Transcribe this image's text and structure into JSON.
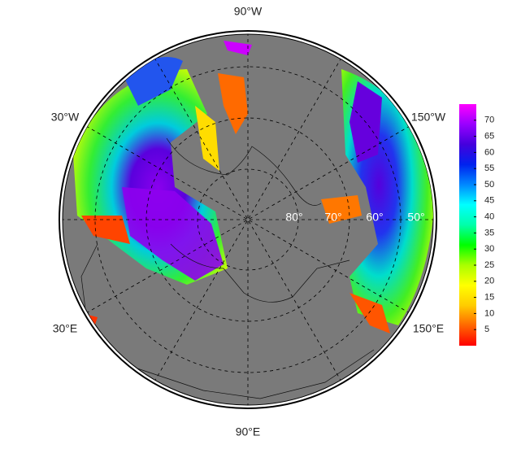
{
  "map": {
    "longitude_labels": [
      "90°W",
      "30°W",
      "150°W",
      "30°E",
      "150°E",
      "90°E"
    ],
    "latitude_labels": [
      "80°",
      "70°",
      "60°",
      "50°"
    ]
  },
  "colorbar": {
    "lim": [
      0,
      75
    ],
    "ticks": [
      5,
      10,
      15,
      20,
      25,
      30,
      35,
      40,
      45,
      50,
      55,
      60,
      65,
      70
    ],
    "colors": [
      "#ff0000",
      "#ff6600",
      "#ffcc00",
      "#ffff00",
      "#aaff00",
      "#00ff00",
      "#00ffaa",
      "#00ffff",
      "#0088ff",
      "#0022ee",
      "#4400dd",
      "#9900ff",
      "#ff00ff"
    ]
  }
}
